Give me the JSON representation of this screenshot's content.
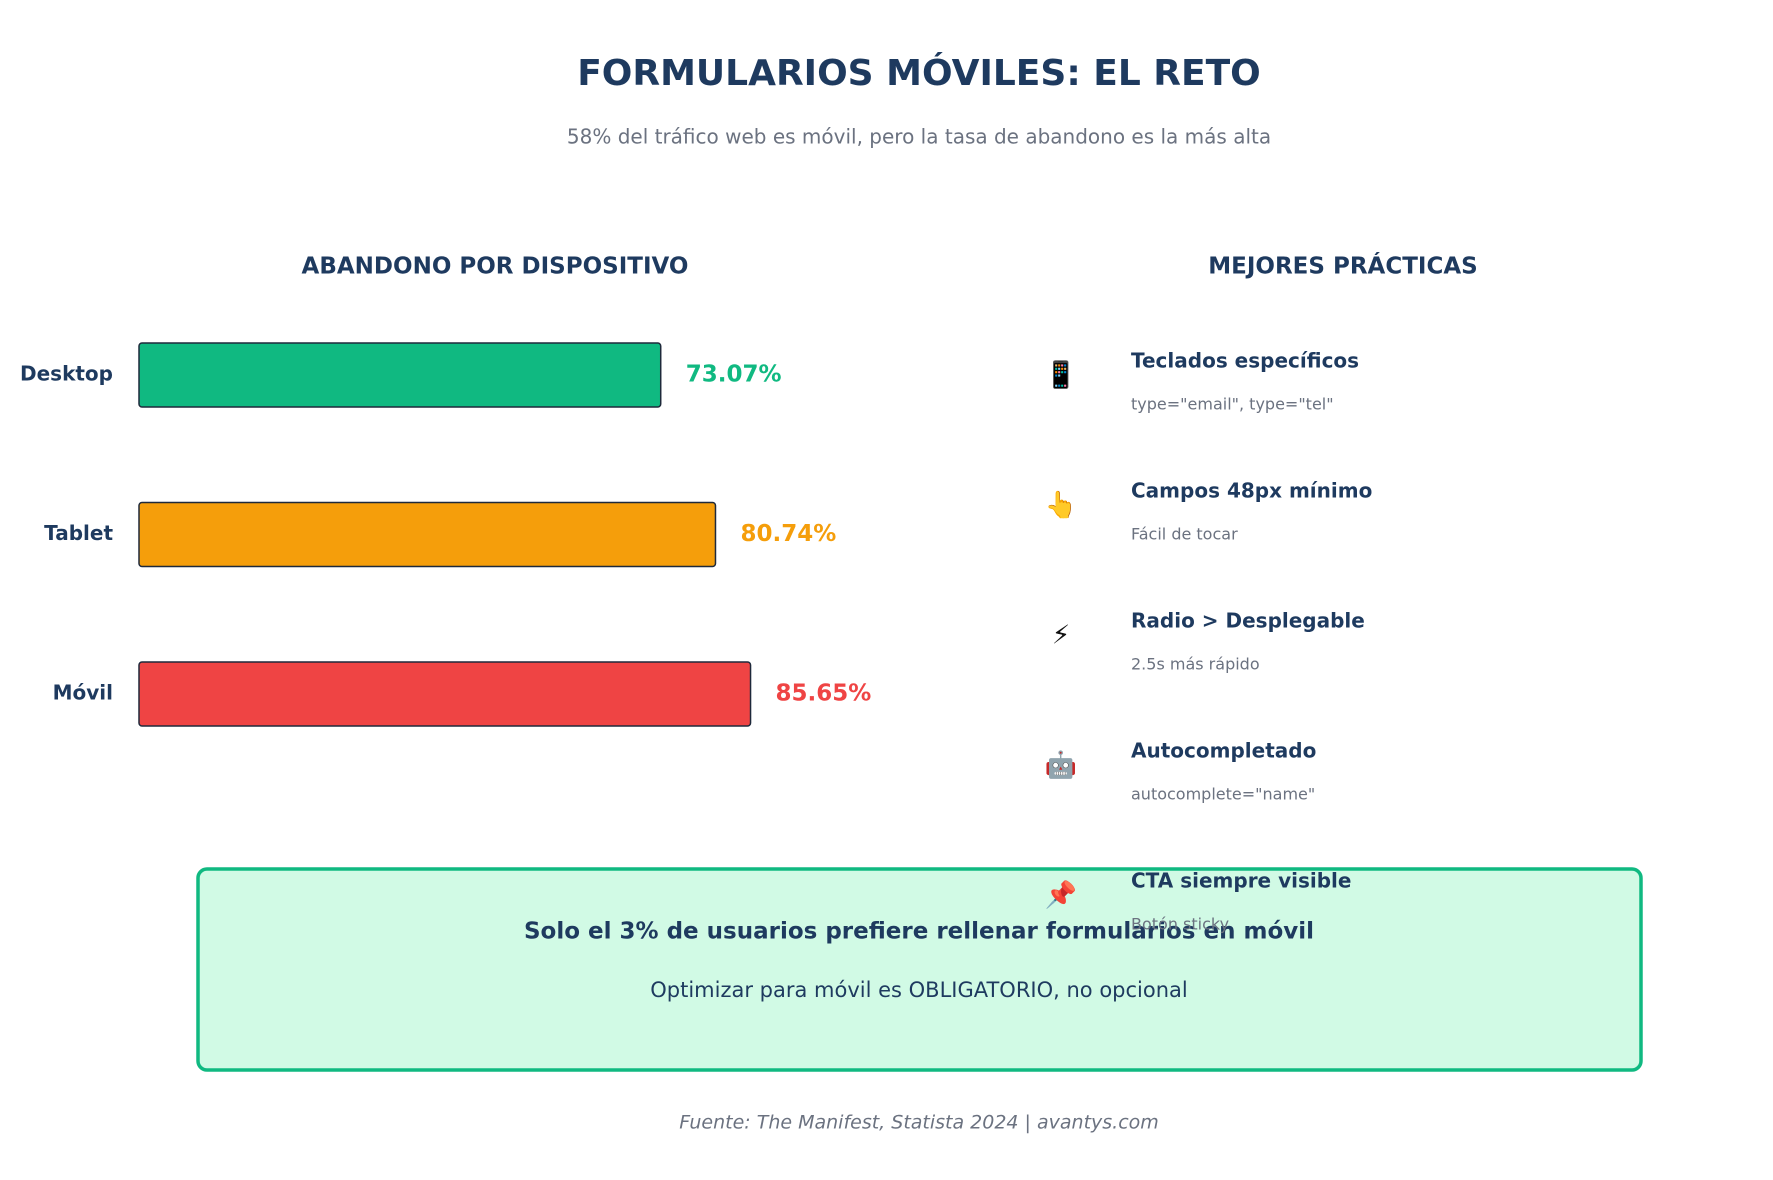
{
  "title": "FORMULARIOS MÓVILES: EL RETO",
  "subtitle": "58% del tráfico web es móvil, pero la tasa de abandono es la más alta",
  "chart_data": {
    "type": "bar",
    "orientation": "horizontal",
    "title": "ABANDONO POR DISPOSITIVO",
    "categories": [
      "Desktop",
      "Tablet",
      "Móvil"
    ],
    "values": [
      73.07,
      80.74,
      85.65
    ],
    "value_labels": [
      "73.07%",
      "80.74%",
      "85.65%"
    ],
    "colors": [
      "#10b981",
      "#f59e0b",
      "#ef4444"
    ]
  },
  "practices": {
    "title": "MEJORES PRÁCTICAS",
    "items": [
      {
        "icon": "📱",
        "title": "Teclados específicos",
        "description": "type=\"email\", type=\"tel\""
      },
      {
        "icon": "👆",
        "title": "Campos 48px mínimo",
        "description": "Fácil de tocar"
      },
      {
        "icon": "⚡",
        "title": "Radio > Desplegable",
        "description": "2.5s más rápido"
      },
      {
        "icon": "🤖",
        "title": "Autocompletado",
        "description": "autocomplete=\"name\""
      },
      {
        "icon": "📌",
        "title": "CTA siempre visible",
        "description": "Botón sticky"
      }
    ]
  },
  "callout": {
    "title": "Solo el 3% de usuarios prefiere rellenar formularios en móvil",
    "text": "Optimizar para móvil es OBLIGATORIO, no opcional"
  },
  "footer": "Fuente: The Manifest, Statista 2024 | avantys.com"
}
